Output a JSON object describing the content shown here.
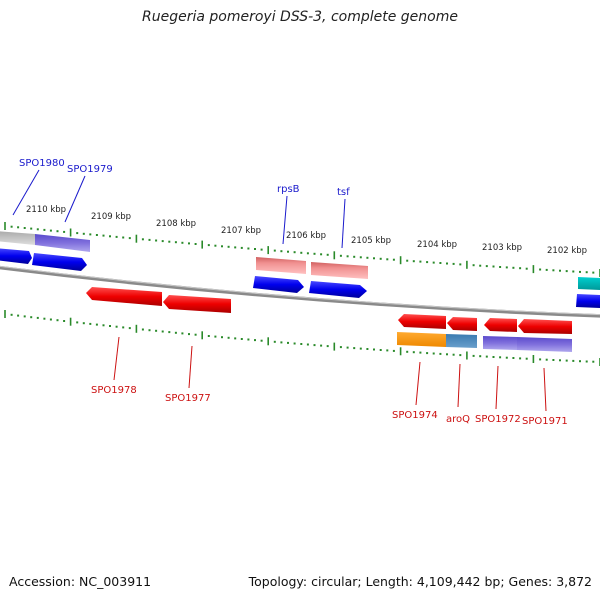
{
  "title": "Ruegeria pomeroyi DSS-3, complete genome",
  "footer": {
    "accession": "Accession: NC_003911",
    "topology": "Topology: circular; Length: 4,109,442 bp; Genes: 3,872"
  },
  "colors": {
    "forward_label": "#1a1acc",
    "reverse_label": "#cc1111",
    "tick": "#2a8a2a",
    "backbone": "#8a8a8a"
  },
  "scale_labels": [
    "2110 kbp",
    "2109 kbp",
    "2108 kbp",
    "2107 kbp",
    "2106 kbp",
    "2105 kbp",
    "2104 kbp",
    "2103 kbp",
    "2102 kbp"
  ],
  "genes_forward": [
    {
      "label": "SPO1980",
      "strand": "+"
    },
    {
      "label": "SPO1979",
      "strand": "+"
    },
    {
      "label": "rpsB",
      "strand": "+"
    },
    {
      "label": "tsf",
      "strand": "+"
    }
  ],
  "genes_reverse": [
    {
      "label": "SPO1978",
      "strand": "-"
    },
    {
      "label": "SPO1977",
      "strand": "-"
    },
    {
      "label": "SPO1974",
      "strand": "-"
    },
    {
      "label": "aroQ",
      "strand": "-"
    },
    {
      "label": "SPO1972",
      "strand": "-"
    },
    {
      "label": "SPO1971",
      "strand": "-"
    }
  ]
}
